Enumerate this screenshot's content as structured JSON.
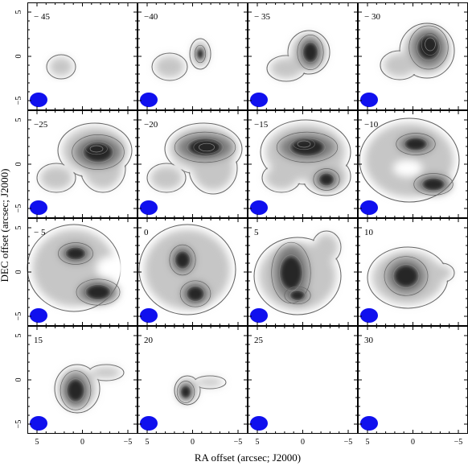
{
  "figure": {
    "xlabel": "RA offset (arcsec; J2000)",
    "ylabel": "DEC offset (arcsec; J2000)",
    "x_ticks": [
      "5",
      "0",
      "−5"
    ],
    "y_ticks": [
      "5",
      "0",
      "−5"
    ],
    "beam_color": "#1010ee",
    "panels": [
      {
        "velocity": "− 45"
      },
      {
        "velocity": "−40"
      },
      {
        "velocity": "− 35"
      },
      {
        "velocity": "− 30"
      },
      {
        "velocity": "−25"
      },
      {
        "velocity": "−20"
      },
      {
        "velocity": "−15"
      },
      {
        "velocity": "−10"
      },
      {
        "velocity": "− 5"
      },
      {
        "velocity": "0"
      },
      {
        "velocity": "5"
      },
      {
        "velocity": "10"
      },
      {
        "velocity": "15"
      },
      {
        "velocity": "20"
      },
      {
        "velocity": "25"
      },
      {
        "velocity": "30"
      }
    ]
  }
}
